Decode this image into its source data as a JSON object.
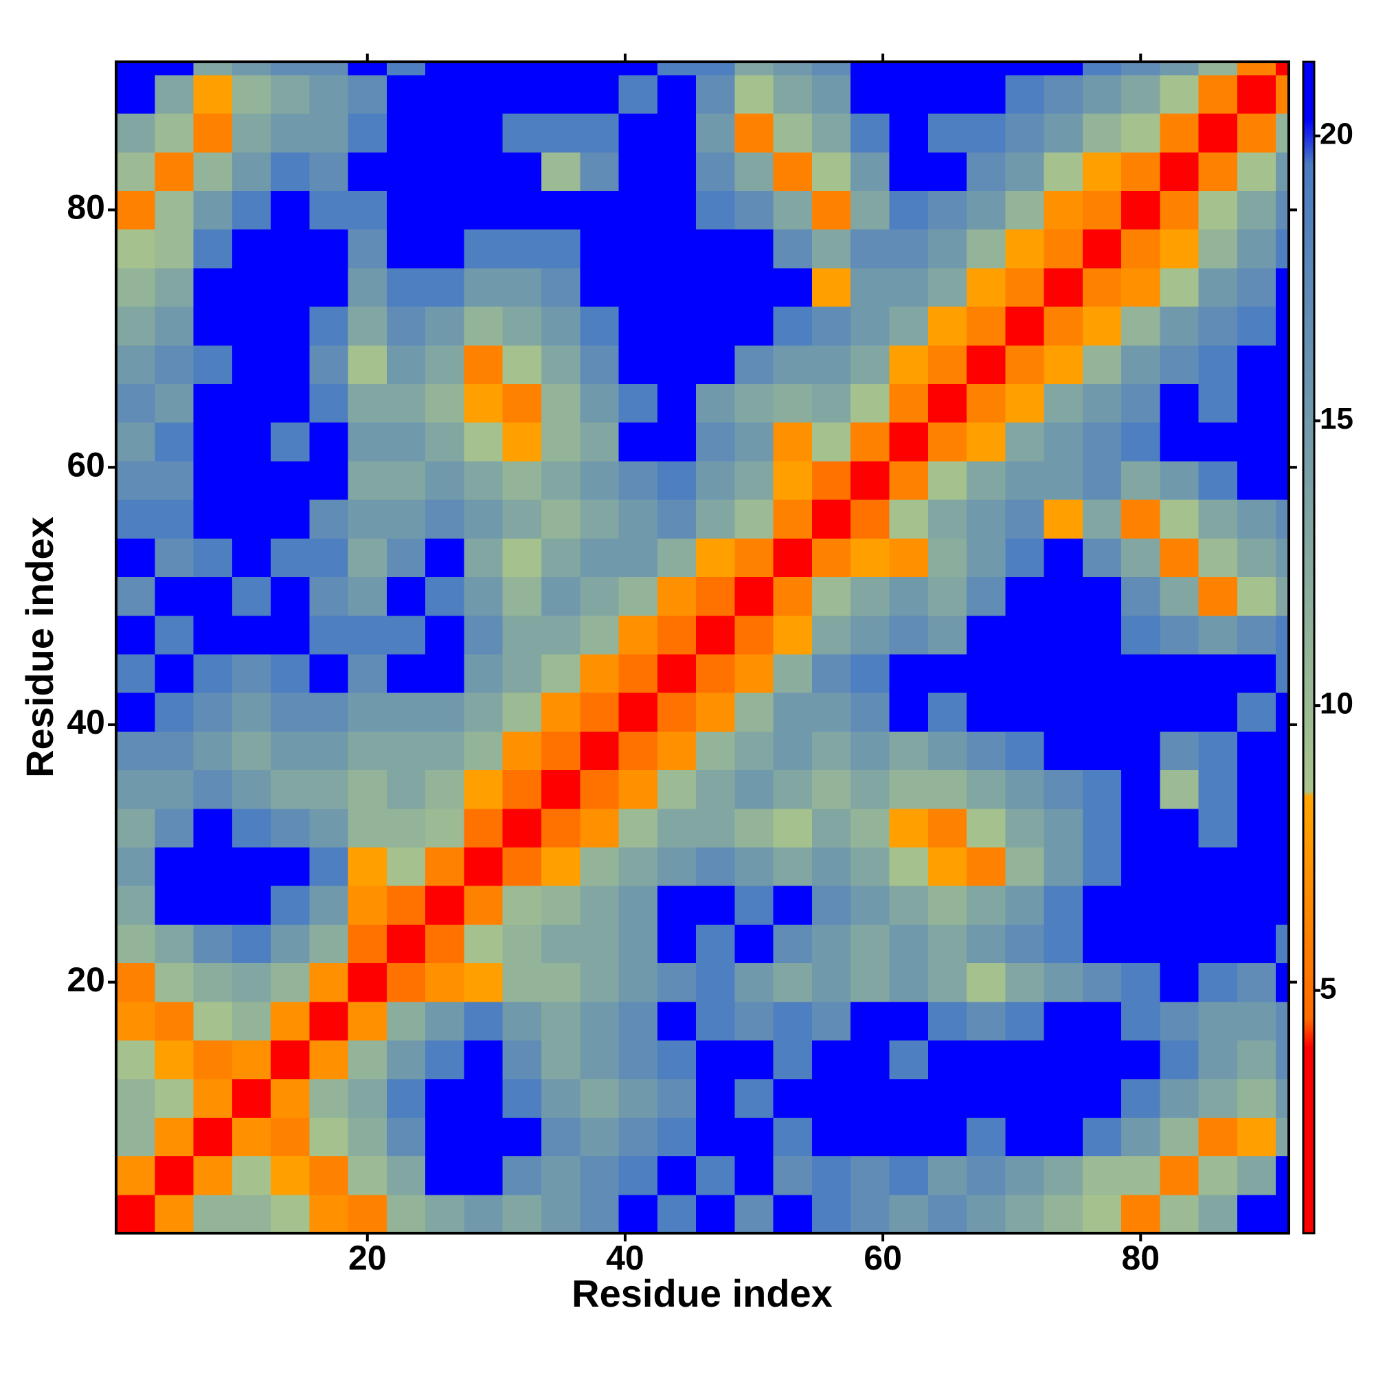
{
  "chart_data": {
    "type": "heatmap",
    "xlabel": "Residue index",
    "ylabel": "Residue index",
    "x": [
      2,
      5,
      8,
      11,
      14,
      17,
      20,
      23,
      26,
      29,
      32,
      35,
      38,
      41,
      44,
      47,
      50,
      53,
      56,
      59,
      62,
      65,
      68,
      71,
      74,
      77,
      80,
      83,
      86,
      89,
      92
    ],
    "y": [
      2,
      5,
      8,
      11,
      14,
      17,
      20,
      23,
      26,
      29,
      32,
      35,
      38,
      41,
      44,
      47,
      50,
      53,
      56,
      59,
      62,
      65,
      68,
      71,
      74,
      77,
      80,
      83,
      86,
      89,
      92
    ],
    "z": [
      [
        2,
        7,
        11,
        11,
        9,
        7,
        6,
        11,
        13,
        15,
        13,
        15,
        17,
        21,
        19,
        21,
        17,
        21,
        19,
        17,
        15,
        17,
        15,
        13,
        11,
        9,
        6,
        10,
        13,
        21,
        21
      ],
      [
        7,
        2,
        7,
        9,
        8,
        6,
        10,
        13,
        21,
        21,
        17,
        15,
        17,
        19,
        21,
        19,
        21,
        17,
        19,
        17,
        19,
        15,
        17,
        15,
        13,
        10,
        10,
        6,
        10,
        13,
        21
      ],
      [
        11,
        7,
        2,
        7,
        6,
        9,
        12,
        17,
        21,
        21,
        21,
        17,
        15,
        17,
        19,
        21,
        21,
        19,
        21,
        21,
        21,
        21,
        19,
        21,
        21,
        19,
        15,
        11,
        6,
        8,
        13
      ],
      [
        11,
        9,
        7,
        2,
        7,
        11,
        13,
        19,
        21,
        21,
        19,
        15,
        13,
        15,
        17,
        21,
        19,
        21,
        21,
        21,
        21,
        21,
        21,
        21,
        21,
        21,
        19,
        15,
        13,
        11,
        15
      ],
      [
        9,
        8,
        6,
        7,
        2,
        7,
        11,
        15,
        19,
        21,
        17,
        13,
        15,
        17,
        19,
        21,
        21,
        19,
        21,
        21,
        19,
        21,
        21,
        21,
        21,
        21,
        21,
        19,
        15,
        13,
        17
      ],
      [
        7,
        6,
        9,
        11,
        7,
        2,
        7,
        12,
        15,
        19,
        15,
        13,
        15,
        17,
        21,
        19,
        17,
        19,
        17,
        21,
        21,
        19,
        17,
        19,
        21,
        21,
        19,
        17,
        15,
        15,
        17
      ],
      [
        6,
        10,
        12,
        13,
        11,
        7,
        2,
        5,
        7,
        8,
        11,
        11,
        13,
        15,
        17,
        19,
        15,
        13,
        15,
        13,
        15,
        13,
        9,
        13,
        15,
        17,
        19,
        21,
        19,
        17,
        21
      ],
      [
        11,
        13,
        17,
        19,
        15,
        12,
        5,
        2,
        5,
        9,
        11,
        13,
        13,
        15,
        21,
        19,
        21,
        17,
        15,
        13,
        15,
        13,
        15,
        17,
        19,
        21,
        21,
        21,
        21,
        21,
        19
      ],
      [
        13,
        21,
        21,
        21,
        19,
        15,
        7,
        5,
        2,
        6,
        10,
        11,
        13,
        15,
        21,
        21,
        19,
        21,
        17,
        15,
        13,
        11,
        13,
        15,
        19,
        21,
        21,
        21,
        21,
        21,
        21
      ],
      [
        15,
        21,
        21,
        21,
        21,
        19,
        8,
        9,
        6,
        2,
        5,
        8,
        11,
        13,
        15,
        17,
        15,
        13,
        15,
        13,
        9,
        8,
        6,
        11,
        15,
        19,
        21,
        21,
        21,
        21,
        21
      ],
      [
        13,
        17,
        21,
        19,
        17,
        15,
        11,
        11,
        10,
        5,
        2,
        5,
        7,
        10,
        13,
        13,
        11,
        9,
        13,
        11,
        8,
        6,
        9,
        13,
        15,
        19,
        21,
        21,
        19,
        21,
        21
      ],
      [
        15,
        15,
        17,
        15,
        13,
        13,
        11,
        13,
        11,
        8,
        5,
        2,
        5,
        7,
        10,
        13,
        15,
        13,
        11,
        13,
        11,
        11,
        13,
        15,
        17,
        19,
        21,
        10,
        19,
        21,
        21
      ],
      [
        17,
        17,
        15,
        13,
        15,
        15,
        13,
        13,
        13,
        11,
        7,
        5,
        2,
        5,
        7,
        11,
        13,
        15,
        13,
        15,
        13,
        15,
        17,
        19,
        21,
        21,
        21,
        17,
        19,
        21,
        21
      ],
      [
        21,
        19,
        17,
        15,
        17,
        17,
        15,
        15,
        15,
        13,
        10,
        7,
        5,
        2,
        5,
        7,
        11,
        15,
        15,
        17,
        21,
        19,
        21,
        21,
        21,
        21,
        21,
        21,
        21,
        19,
        21
      ],
      [
        19,
        21,
        19,
        17,
        19,
        21,
        17,
        21,
        21,
        15,
        13,
        10,
        7,
        5,
        2,
        5,
        7,
        12,
        17,
        19,
        21,
        21,
        21,
        21,
        21,
        21,
        21,
        21,
        21,
        21,
        19
      ],
      [
        21,
        19,
        21,
        21,
        21,
        19,
        19,
        19,
        21,
        17,
        13,
        13,
        11,
        7,
        5,
        2,
        5,
        8,
        13,
        15,
        17,
        15,
        21,
        21,
        21,
        21,
        19,
        17,
        15,
        17,
        19
      ],
      [
        17,
        21,
        21,
        19,
        21,
        17,
        15,
        21,
        19,
        15,
        11,
        15,
        13,
        11,
        7,
        5,
        2,
        6,
        10,
        13,
        15,
        13,
        17,
        21,
        21,
        21,
        17,
        13,
        6,
        9,
        13
      ],
      [
        21,
        17,
        19,
        21,
        19,
        19,
        13,
        17,
        21,
        13,
        9,
        13,
        15,
        15,
        12,
        8,
        6,
        2,
        6,
        8,
        7,
        12,
        15,
        19,
        21,
        17,
        13,
        6,
        10,
        13,
        15
      ],
      [
        19,
        19,
        21,
        21,
        21,
        17,
        15,
        15,
        17,
        15,
        13,
        11,
        13,
        15,
        17,
        13,
        10,
        6,
        2,
        5,
        9,
        13,
        15,
        17,
        8,
        13,
        6,
        9,
        13,
        15,
        17
      ],
      [
        17,
        17,
        21,
        21,
        21,
        21,
        13,
        13,
        15,
        13,
        11,
        13,
        15,
        17,
        19,
        15,
        13,
        8,
        5,
        2,
        6,
        9,
        13,
        15,
        15,
        17,
        13,
        15,
        19,
        21,
        21
      ],
      [
        15,
        19,
        21,
        21,
        19,
        21,
        15,
        15,
        13,
        9,
        8,
        11,
        13,
        21,
        21,
        17,
        15,
        7,
        9,
        6,
        2,
        6,
        8,
        13,
        15,
        17,
        19,
        21,
        21,
        21,
        21
      ],
      [
        17,
        15,
        21,
        21,
        21,
        19,
        13,
        13,
        11,
        8,
        6,
        11,
        15,
        19,
        21,
        15,
        13,
        12,
        13,
        9,
        6,
        2,
        6,
        8,
        13,
        15,
        17,
        21,
        19,
        21,
        21
      ],
      [
        15,
        17,
        19,
        21,
        21,
        17,
        9,
        15,
        13,
        6,
        9,
        13,
        17,
        21,
        21,
        21,
        17,
        15,
        15,
        13,
        8,
        6,
        2,
        6,
        8,
        11,
        15,
        17,
        19,
        21,
        21
      ],
      [
        13,
        15,
        21,
        21,
        21,
        19,
        13,
        17,
        15,
        11,
        13,
        15,
        19,
        21,
        21,
        21,
        21,
        19,
        17,
        15,
        13,
        8,
        6,
        2,
        6,
        8,
        11,
        15,
        17,
        19,
        21
      ],
      [
        11,
        13,
        21,
        21,
        21,
        21,
        15,
        19,
        19,
        15,
        15,
        17,
        21,
        21,
        21,
        21,
        21,
        21,
        8,
        15,
        15,
        13,
        8,
        6,
        2,
        6,
        7,
        9,
        15,
        17,
        21
      ],
      [
        9,
        10,
        19,
        21,
        21,
        21,
        17,
        21,
        21,
        19,
        19,
        19,
        21,
        21,
        21,
        21,
        21,
        17,
        13,
        17,
        17,
        15,
        11,
        8,
        6,
        2,
        6,
        8,
        11,
        15,
        19
      ],
      [
        6,
        10,
        15,
        19,
        21,
        19,
        19,
        21,
        21,
        21,
        21,
        21,
        21,
        21,
        21,
        19,
        17,
        13,
        6,
        13,
        19,
        17,
        15,
        11,
        7,
        6,
        2,
        6,
        9,
        13,
        17
      ],
      [
        10,
        6,
        11,
        15,
        19,
        17,
        21,
        21,
        21,
        21,
        21,
        10,
        17,
        21,
        21,
        17,
        13,
        6,
        9,
        15,
        21,
        21,
        17,
        15,
        9,
        8,
        6,
        2,
        6,
        9,
        15
      ],
      [
        13,
        10,
        6,
        13,
        15,
        15,
        19,
        21,
        21,
        21,
        19,
        19,
        19,
        21,
        21,
        15,
        6,
        10,
        13,
        19,
        21,
        19,
        19,
        17,
        15,
        11,
        9,
        6,
        2,
        6,
        11
      ],
      [
        21,
        13,
        8,
        11,
        13,
        15,
        17,
        21,
        21,
        21,
        21,
        21,
        21,
        19,
        21,
        17,
        9,
        13,
        15,
        21,
        21,
        21,
        21,
        19,
        17,
        15,
        13,
        9,
        6,
        2,
        6
      ],
      [
        21,
        21,
        13,
        15,
        17,
        17,
        21,
        19,
        21,
        21,
        21,
        21,
        21,
        21,
        19,
        19,
        13,
        15,
        17,
        21,
        21,
        21,
        21,
        21,
        21,
        19,
        17,
        15,
        11,
        6,
        2
      ]
    ],
    "xlim": [
      0.5,
      91.5
    ],
    "ylim": [
      0.5,
      91.5
    ],
    "xticks": [
      20,
      40,
      60,
      80
    ],
    "yticks": [
      20,
      40,
      60,
      80
    ],
    "colorscale": [
      {
        "value": 0.74,
        "color": "#ff0000"
      },
      {
        "value": 4,
        "color": "#ff0000"
      },
      {
        "value": 4.5,
        "color": "#ff6a00"
      },
      {
        "value": 8.4,
        "color": "#ffa500"
      },
      {
        "value": 8.5,
        "color": "#a9c48c"
      },
      {
        "value": 19.5,
        "color": "#4a7cc2"
      },
      {
        "value": 20.3,
        "color": "#0000ff"
      },
      {
        "value": 21.3,
        "color": "#0000ff"
      }
    ],
    "colorbar": {
      "lim": [
        0.74,
        21.3
      ],
      "ticks": [
        5,
        10,
        15,
        20
      ]
    }
  }
}
